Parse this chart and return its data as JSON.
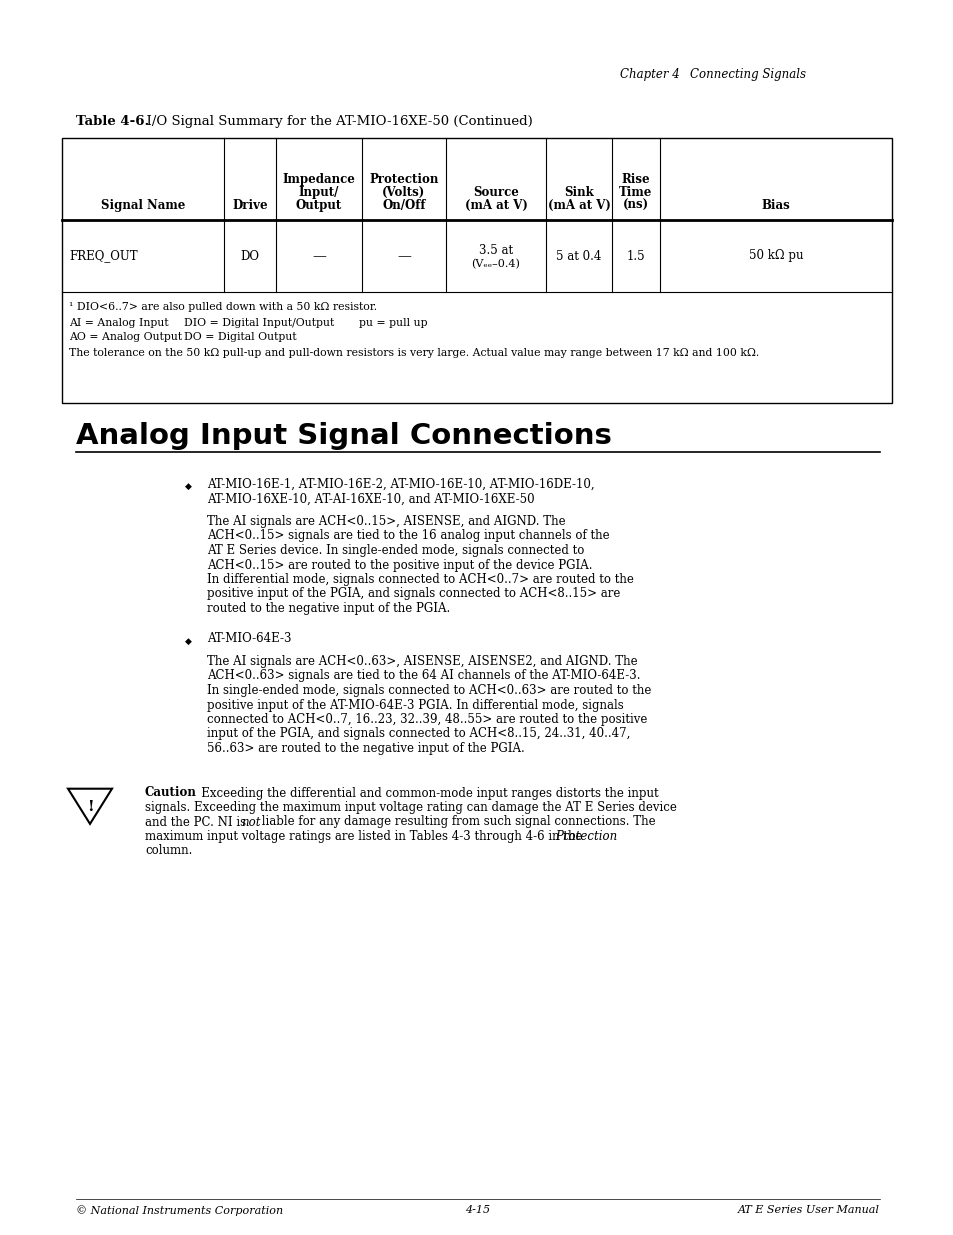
{
  "page_bg": "#ffffff",
  "header_text_left": "Chapter 4",
  "header_text_right": "Connecting Signals",
  "table_title_bold": "Table 4-6.",
  "table_title_rest": "  I/O Signal Summary for the AT-MIO-16XE-50 (Continued)",
  "col_headers": [
    [
      "Signal Name"
    ],
    [
      "Drive"
    ],
    [
      "Impedance",
      "Input/",
      "Output"
    ],
    [
      "Protection",
      "(Volts)",
      "On/Off"
    ],
    [
      "Source",
      "(mA at V)"
    ],
    [
      "Sink",
      "(mA at V)"
    ],
    [
      "Rise",
      "Time",
      "(ns)"
    ],
    [
      "Bias"
    ]
  ],
  "row_signal": "FREQ_OUT",
  "row_drive": "DO",
  "row_imp": "—",
  "row_prot": "—",
  "row_source1": "3.5 at",
  "row_source2": "(Vₑₑ–0.4)",
  "row_sink": "5 at 0.4",
  "row_rise": "1.5",
  "row_bias": "50 kΩ pu",
  "footnote1": "¹ DIO<6..7> are also pulled down with a 50 kΩ resistor.",
  "footnote2a": "AI = Analog Input",
  "footnote2b": "DIO = Digital Input/Output",
  "footnote2c": "pu = pull up",
  "footnote3a": "AO = Analog Output",
  "footnote3b": "DO = Digital Output",
  "footnote4": "The tolerance on the 50 kΩ pull-up and pull-down resistors is very large. Actual value may range between 17 kΩ and 100 kΩ.",
  "section_title": "Analog Input Signal Connections",
  "b1_line1": "AT-MIO-16E-1, AT-MIO-16E-2, AT-MIO-16E-10, AT-MIO-16DE-10,",
  "b1_line2": "AT-MIO-16XE-10, AT-AI-16XE-10, and AT-MIO-16XE-50",
  "b1_body": "The AI signals are ACH<0..15>, AISENSE, and AIGND. The\nACH<0..15> signals are tied to the 16 analog input channels of the\nAT E Series device. In single-ended mode, signals connected to\nACH<0..15> are routed to the positive input of the device PGIA.\nIn differential mode, signals connected to ACH<0..7> are routed to the\npositive input of the PGIA, and signals connected to ACH<8..15> are\nrouted to the negative input of the PGIA.",
  "b2_header": "AT-MIO-64E-3",
  "b2_body": "The AI signals are ACH<0..63>, AISENSE, AISENSE2, and AIGND. The\nACH<0..63> signals are tied to the 64 AI channels of the AT-MIO-64E-3.\nIn single-ended mode, signals connected to ACH<0..63> are routed to the\npositive input of the AT-MIO-64E-3 PGIA. In differential mode, signals\nconnected to ACH<0..7, 16..23, 32..39, 48..55> are routed to the positive\ninput of the PGIA, and signals connected to ACH<8..15, 24..31, 40..47,\n56..63> are routed to the negative input of the PGIA.",
  "caution_bold": "Caution",
  "caution_line1": "   Exceeding the differential and common-mode input ranges distorts the input",
  "caution_line2": "signals. Exceeding the maximum input voltage rating can damage the AT E Series device",
  "caution_line3a": "and the PC. NI is ",
  "caution_line3b": "not",
  "caution_line3c": " liable for any damage resulting from such signal connections. The",
  "caution_line4a": "maximum input voltage ratings are listed in Tables 4-3 through 4-6 in the ",
  "caution_line4b": "Protection",
  "caution_line5": "column.",
  "footer_left": "© National Instruments Corporation",
  "footer_center": "4-15",
  "footer_right": "AT E Series User Manual",
  "lm": 62,
  "rm": 892,
  "content_lm": 76,
  "content_rm": 880
}
